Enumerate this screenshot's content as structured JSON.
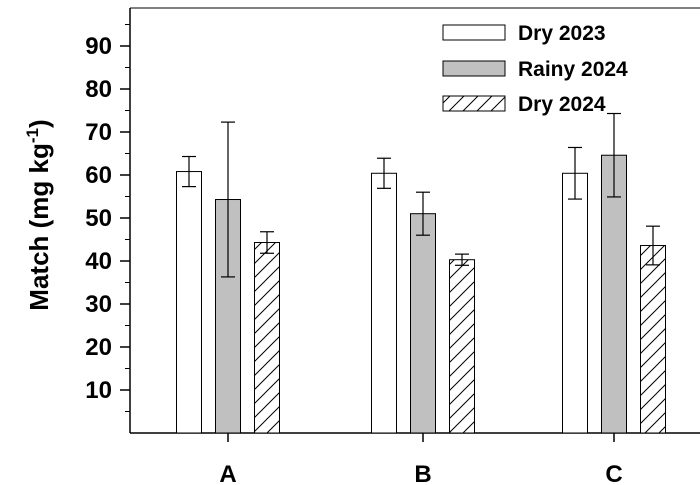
{
  "chart_data": {
    "type": "bar",
    "categories": [
      "A",
      "B",
      "C"
    ],
    "series": [
      {
        "name": "Dry 2023",
        "values": [
          60.8,
          60.4,
          60.4
        ],
        "errors": [
          3.5,
          3.5,
          6.0
        ],
        "fill": "#ffffff",
        "pattern": "none"
      },
      {
        "name": "Rainy 2024",
        "values": [
          54.3,
          51.0,
          64.6
        ],
        "errors": [
          18.0,
          5.0,
          9.7
        ],
        "fill": "#c0c0c0",
        "pattern": "none"
      },
      {
        "name": "Dry 2024",
        "values": [
          44.3,
          40.3,
          43.6
        ],
        "errors": [
          2.5,
          1.3,
          4.5
        ],
        "fill": "#ffffff",
        "pattern": "diagonal-hatch"
      }
    ],
    "ylabel": "Match (mg kg⁻¹)",
    "ylabel_main": "Match (mg kg",
    "ylabel_sup": "-1",
    "ylabel_close": ")",
    "yticks": [
      10,
      20,
      30,
      40,
      50,
      60,
      70,
      80,
      90
    ],
    "ylim": [
      0,
      100
    ],
    "grid": false,
    "legend_position": "top-right"
  }
}
